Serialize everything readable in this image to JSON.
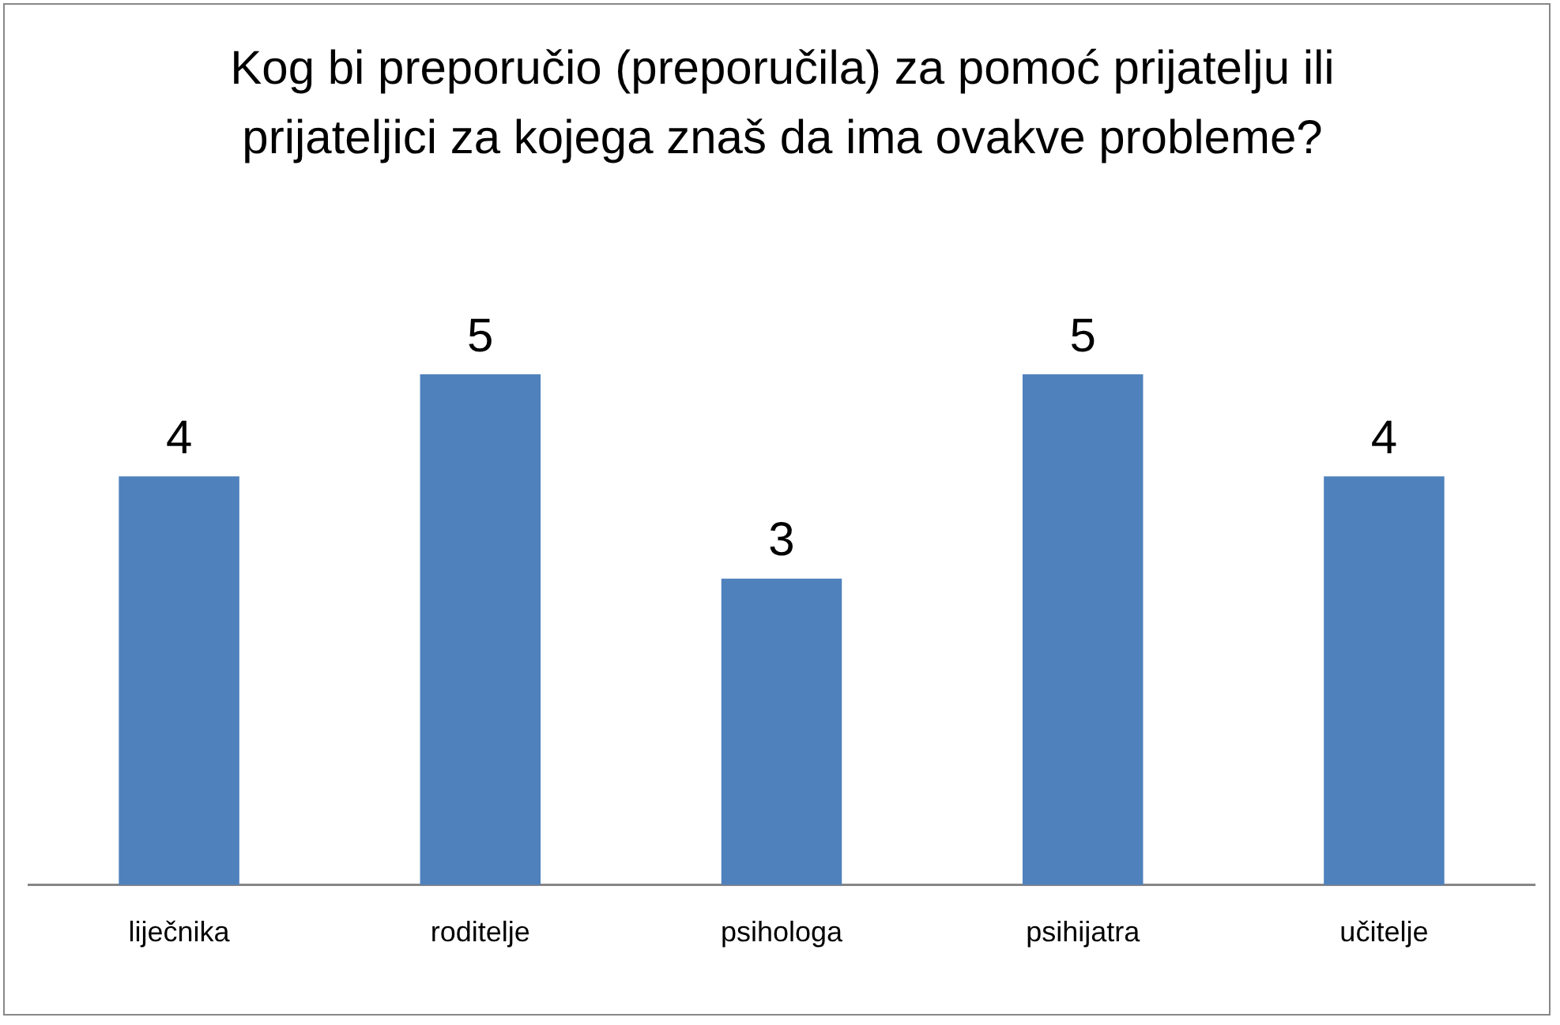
{
  "chart_data": {
    "type": "bar",
    "title": "Kog bi preporučio (preporučila) za pomoć prijatelju ili prijateljici za kojega znaš da ima ovakve probleme?",
    "categories": [
      "liječnika",
      "roditelje",
      "psihologa",
      "psihijatra",
      "učitelje"
    ],
    "values": [
      4,
      5,
      3,
      5,
      4
    ],
    "color": "#4f81bd",
    "data_labels": true,
    "grid": false,
    "legend": false
  }
}
